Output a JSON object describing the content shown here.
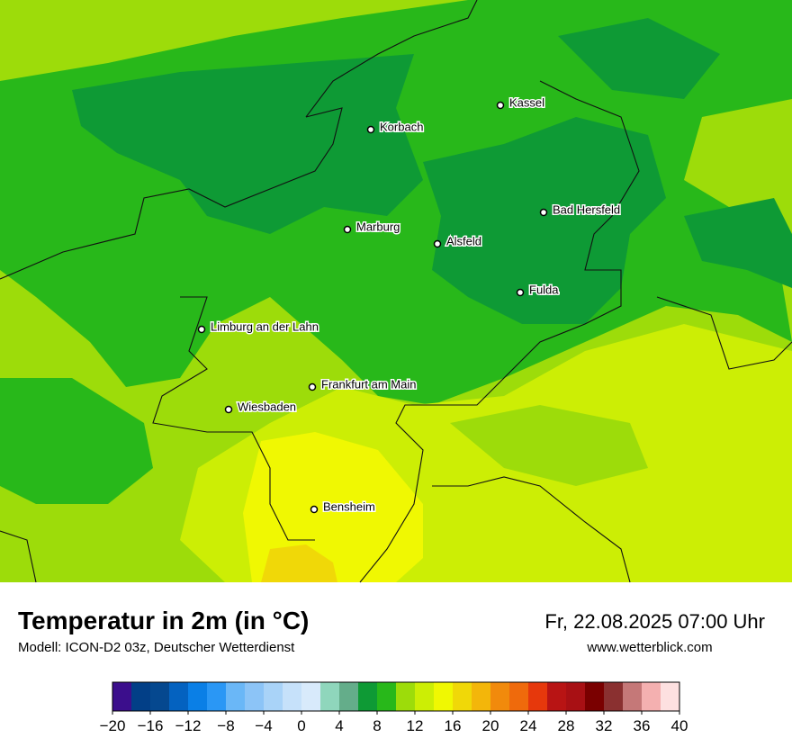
{
  "header": {
    "title": "Temperatur in 2m (in °C)",
    "subtitle": "Modell: ICON-D2 03z, Deutscher Wetterdienst",
    "datetime": "Fr, 22.08.2025 07:00 Uhr",
    "website": "www.wetterblick.com"
  },
  "cities": [
    "Kassel",
    "Korbach",
    "Bad Hersfeld",
    "Marburg",
    "Alsfeld",
    "Fulda",
    "Limburg an der Lahn",
    "Frankfurt am Main",
    "Wiesbaden",
    "Bensheim"
  ],
  "colorbar": {
    "range": [
      -20,
      40
    ],
    "colors": [
      "#3b0e8c",
      "#023f87",
      "#05488f",
      "#0462c0",
      "#0a7fe6",
      "#2a97f5",
      "#6ab7f7",
      "#8cc4f7",
      "#a9d3f8",
      "#c6e1fa",
      "#d8eafb",
      "#8fd6bc",
      "#64ad8a",
      "#0e9a35",
      "#28b81a",
      "#9ddc0a",
      "#ccee05",
      "#f0f802",
      "#f0d808",
      "#f3b60a",
      "#f18a0c",
      "#ef6a0c",
      "#e6380c",
      "#b81414",
      "#a81014",
      "#7a0000",
      "#8a3030",
      "#c57878",
      "#f4b0b0",
      "#fde0e0"
    ],
    "ticks": [
      {
        "value": -20,
        "label": "−20"
      },
      {
        "value": -16,
        "label": "−16"
      },
      {
        "value": -12,
        "label": "−12"
      },
      {
        "value": -8,
        "label": "−8"
      },
      {
        "value": -4,
        "label": "−4"
      },
      0,
      4,
      8,
      12,
      16,
      20,
      24,
      28,
      32,
      36,
      40
    ]
  }
}
